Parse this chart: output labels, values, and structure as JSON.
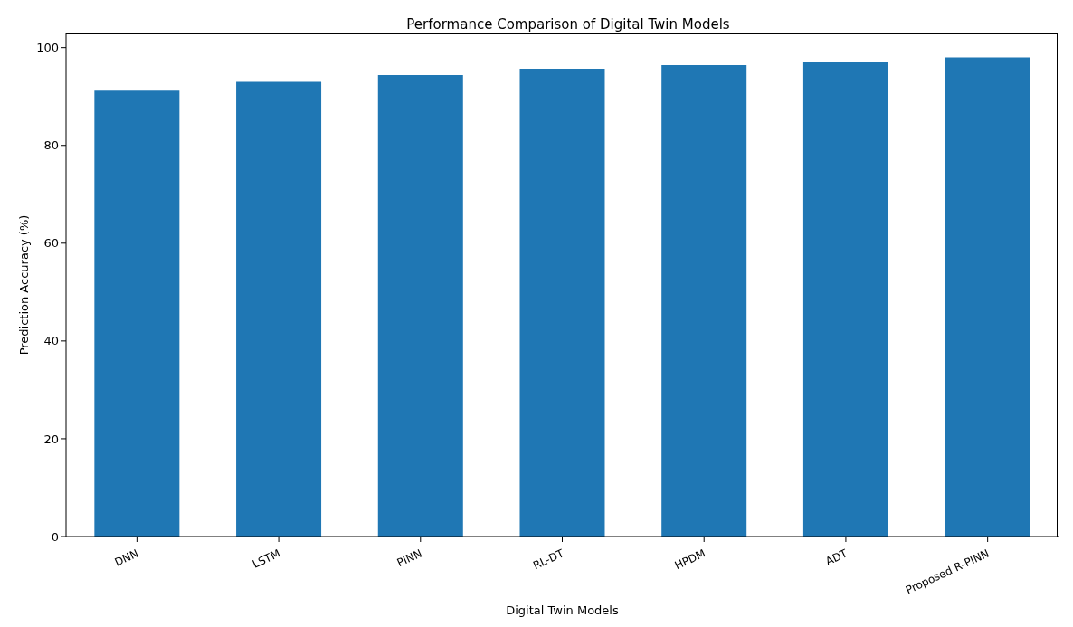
{
  "chart_data": {
    "type": "bar",
    "title": "Performance Comparison of Digital Twin Models",
    "xlabel": "Digital Twin Models",
    "ylabel": "Prediction Accuracy (%)",
    "categories": [
      "DNN",
      "LSTM",
      "PINN",
      "RL-DT",
      "HPDM",
      "ADT",
      "Proposed R-PINN"
    ],
    "values": [
      91.2,
      93.0,
      94.4,
      95.7,
      96.4,
      97.1,
      98.0
    ],
    "color": "#1f77b4",
    "ylim": [
      0,
      102.9
    ],
    "yticks": [
      0,
      20,
      40,
      60,
      80,
      100
    ],
    "grid": false
  }
}
